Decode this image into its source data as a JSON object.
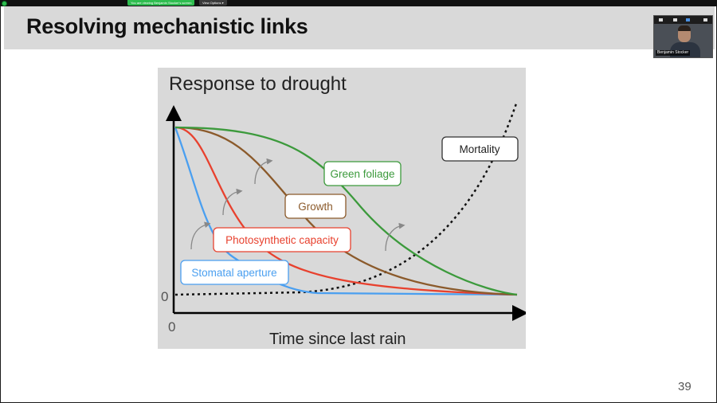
{
  "zoom": {
    "viewing_banner": "You are viewing Benjamin Stocker's screen",
    "view_options_label": "View Options",
    "view_options_icon": "chevron-down-icon",
    "status_color": "#2ebd4f"
  },
  "slide": {
    "title": "Resolving mechanistic links",
    "page_number": "39"
  },
  "video": {
    "participant_name": "Benjamin Stocker"
  },
  "figure": {
    "title": "Response to drought",
    "y_zero_label": "0",
    "x_zero_label": "0",
    "x_axis_label": "Time since last rain",
    "labels": {
      "green_foliage": "Green foliage",
      "growth": "Growth",
      "photosynthetic_capacity": "Photosynthetic capacity",
      "stomatal_aperture": "Stomatal aperture",
      "mortality": "Mortality"
    },
    "colors": {
      "stomatal_aperture": "#4a9ff0",
      "photosynthetic_capacity": "#e8412e",
      "growth": "#8b5a2b",
      "green_foliage": "#3c9a3c",
      "mortality": "#111111",
      "recovery_arrows": "#888888"
    },
    "recovery_arrow_icon": "curved-arrow-icon"
  }
}
